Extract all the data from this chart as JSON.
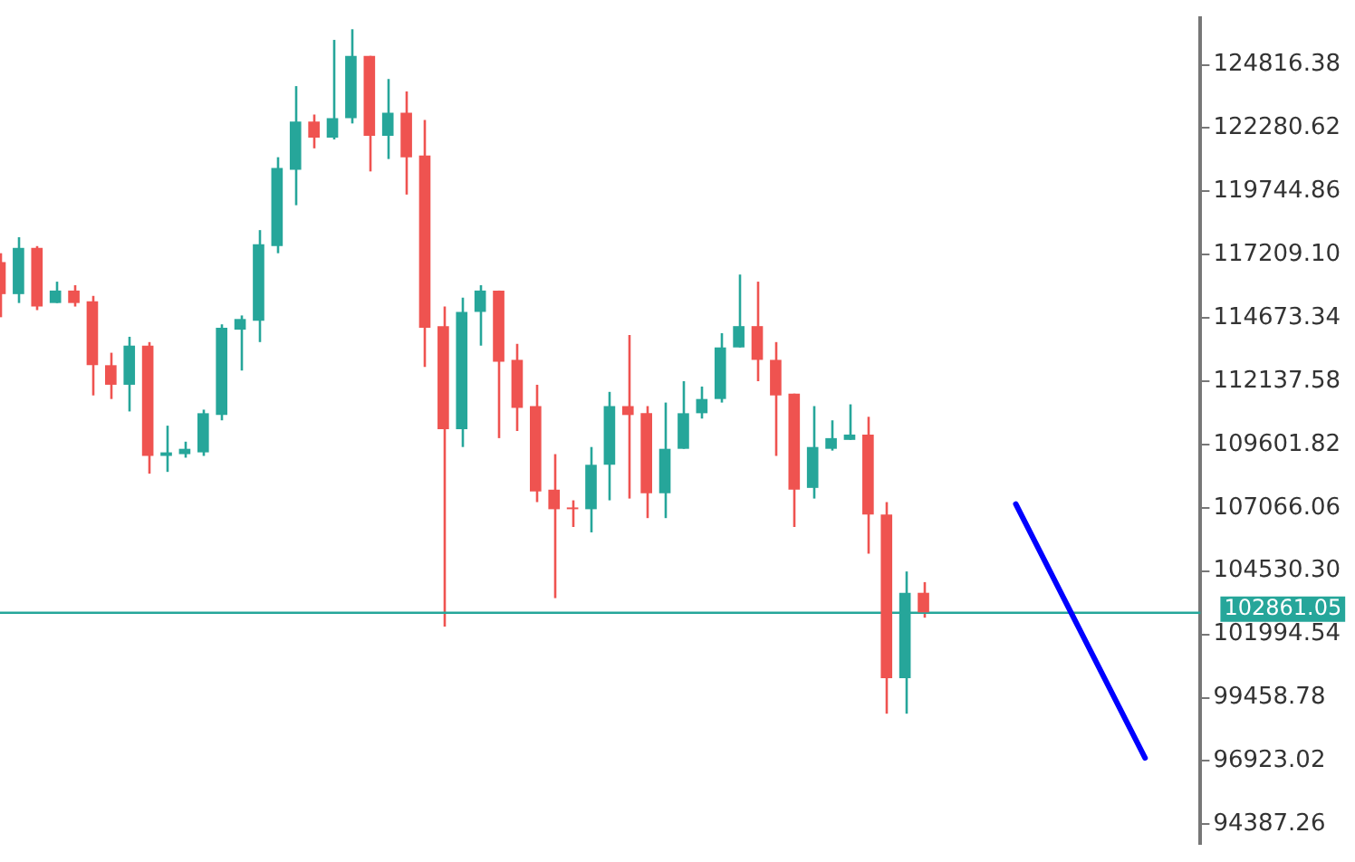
{
  "chart_data": {
    "type": "candlestick",
    "categories": [
      null,
      null,
      null,
      null,
      null,
      null,
      null,
      null,
      null,
      null,
      null,
      null,
      null,
      null,
      null,
      null,
      null,
      null,
      null,
      null,
      null,
      null,
      null,
      null,
      null,
      null,
      null,
      null,
      null,
      null,
      null,
      null,
      null,
      null,
      null,
      null,
      null,
      null,
      null,
      null,
      null,
      null,
      null,
      null,
      null,
      null,
      null,
      null,
      null,
      null,
      null,
      null,
      null,
      null,
      null,
      null,
      null,
      null,
      null,
      null,
      null,
      null,
      null,
      null,
      null,
      null
    ],
    "ohlc": [
      [
        116910,
        117266,
        114701,
        115627
      ],
      [
        115627,
        117907,
        115271,
        117479
      ],
      [
        117479,
        117551,
        114986,
        115129
      ],
      [
        115271,
        116126,
        115271,
        115770
      ],
      [
        115770,
        115983,
        115129,
        115271
      ],
      [
        115342,
        115556,
        111568,
        112779
      ],
      [
        112779,
        113278,
        111425,
        111995
      ],
      [
        111995,
        113918,
        110926,
        113563
      ],
      [
        113563,
        113705,
        108433,
        109145
      ],
      [
        109145,
        110356,
        108504,
        109287
      ],
      [
        109216,
        109715,
        109074,
        109429
      ],
      [
        109287,
        110998,
        109145,
        110855
      ],
      [
        110784,
        114416,
        110570,
        114274
      ],
      [
        114203,
        114772,
        112565,
        114630
      ],
      [
        114559,
        118191,
        113705,
        117622
      ],
      [
        117551,
        121112,
        117266,
        120685
      ],
      [
        120613,
        123961,
        119189,
        122537
      ],
      [
        122537,
        122822,
        121468,
        121895
      ],
      [
        121895,
        125813,
        121824,
        122679
      ],
      [
        122679,
        126240,
        122465,
        125172
      ],
      [
        125172,
        125172,
        120542,
        121967
      ],
      [
        121967,
        124246,
        121040,
        122893
      ],
      [
        122893,
        123747,
        119616,
        121112
      ],
      [
        121183,
        122608,
        112707,
        114274
      ],
      [
        114345,
        115129,
        102307,
        110214
      ],
      [
        110214,
        115485,
        109501,
        114915
      ],
      [
        114915,
        115983,
        113563,
        115770
      ],
      [
        115770,
        115770,
        109857,
        112922
      ],
      [
        112993,
        113634,
        110142,
        111069
      ],
      [
        111140,
        111995,
        107294,
        107721
      ],
      [
        107792,
        109216,
        103447,
        107009
      ],
      [
        107080,
        107365,
        106297,
        107009
      ],
      [
        107009,
        109501,
        106082,
        108789
      ],
      [
        108789,
        111710,
        107365,
        111140
      ],
      [
        111140,
        113989,
        107436,
        110784
      ],
      [
        110855,
        111140,
        106653,
        107649
      ],
      [
        107649,
        111282,
        106653,
        109429
      ],
      [
        109429,
        112138,
        109429,
        110855
      ],
      [
        110855,
        111924,
        110641,
        111425
      ],
      [
        111425,
        114060,
        111282,
        113491
      ],
      [
        113491,
        116411,
        113491,
        114345
      ],
      [
        114345,
        116126,
        112138,
        112993
      ],
      [
        112993,
        113705,
        109145,
        111568
      ],
      [
        111639,
        111639,
        106297,
        107792
      ],
      [
        107863,
        111140,
        107436,
        109501
      ],
      [
        109429,
        110570,
        109358,
        109857
      ],
      [
        109786,
        111211,
        109786,
        110000
      ],
      [
        110000,
        110712,
        105228,
        106795
      ],
      [
        106795,
        107294,
        98817,
        100241
      ],
      [
        100241,
        104515,
        98817,
        103660
      ],
      [
        103660,
        104088,
        102663,
        102877
      ],
      null,
      null,
      null,
      null,
      null,
      null,
      null,
      null,
      null,
      null,
      null,
      null,
      null,
      null,
      null
    ],
    "colors": [
      "#ef5350",
      "#26a69a",
      "#ef5350",
      "#26a69a",
      "#ef5350",
      "#ef5350",
      "#ef5350",
      "#26a69a",
      "#ef5350",
      "#26a69a",
      "#26a69a",
      "#26a69a",
      "#26a69a",
      "#26a69a",
      "#26a69a",
      "#26a69a",
      "#26a69a",
      "#ef5350",
      "#26a69a",
      "#26a69a",
      "#ef5350",
      "#26a69a",
      "#ef5350",
      "#ef5350",
      "#ef5350",
      "#26a69a",
      "#26a69a",
      "#ef5350",
      "#ef5350",
      "#ef5350",
      "#ef5350",
      "#ef5350",
      "#26a69a",
      "#26a69a",
      "#ef5350",
      "#ef5350",
      "#26a69a",
      "#26a69a",
      "#26a69a",
      "#26a69a",
      "#26a69a",
      "#ef5350",
      "#ef5350",
      "#ef5350",
      "#26a69a",
      "#26a69a",
      "#26a69a",
      "#ef5350",
      "#ef5350",
      "#26a69a",
      "#ef5350",
      null,
      null,
      null,
      null,
      null,
      null,
      null,
      null,
      null,
      null,
      null,
      null,
      null,
      null,
      null
    ],
    "series": [
      {
        "type": "line",
        "color": "#0000ff",
        "values": [
          null,
          null,
          null,
          null,
          null,
          null,
          null,
          null,
          null,
          null,
          null,
          null,
          null,
          null,
          null,
          null,
          null,
          null,
          null,
          null,
          null,
          null,
          null,
          null,
          null,
          null,
          null,
          null,
          null,
          null,
          null,
          null,
          null,
          null,
          null,
          null,
          null,
          null,
          null,
          null,
          null,
          null,
          null,
          null,
          null,
          null,
          null,
          null,
          null,
          null,
          null,
          null,
          null,
          null,
          null,
          107220,
          null,
          null,
          null,
          null,
          null,
          null,
          97040,
          null,
          null,
          null
        ]
      }
    ],
    "ylim": [
      93600,
      126700
    ],
    "yticks": [
      124816.38,
      122280.62,
      119744.86,
      {
        "value": 117209.1,
        "label": "117209.10"
      },
      114673.34,
      112137.58,
      109601.82,
      107066.06,
      {
        "value": 104530.3,
        "label": "104530.30"
      },
      101994.54,
      99458.78,
      96923.02,
      94387.26
    ],
    "ref_lines": [
      {
        "axis": "y",
        "value": 102861.05,
        "label": "102861.05",
        "color": "#26a69a"
      }
    ],
    "tick_labels": "y",
    "grid": false,
    "legend": false,
    "marker": "none",
    "line_style": "solid"
  }
}
